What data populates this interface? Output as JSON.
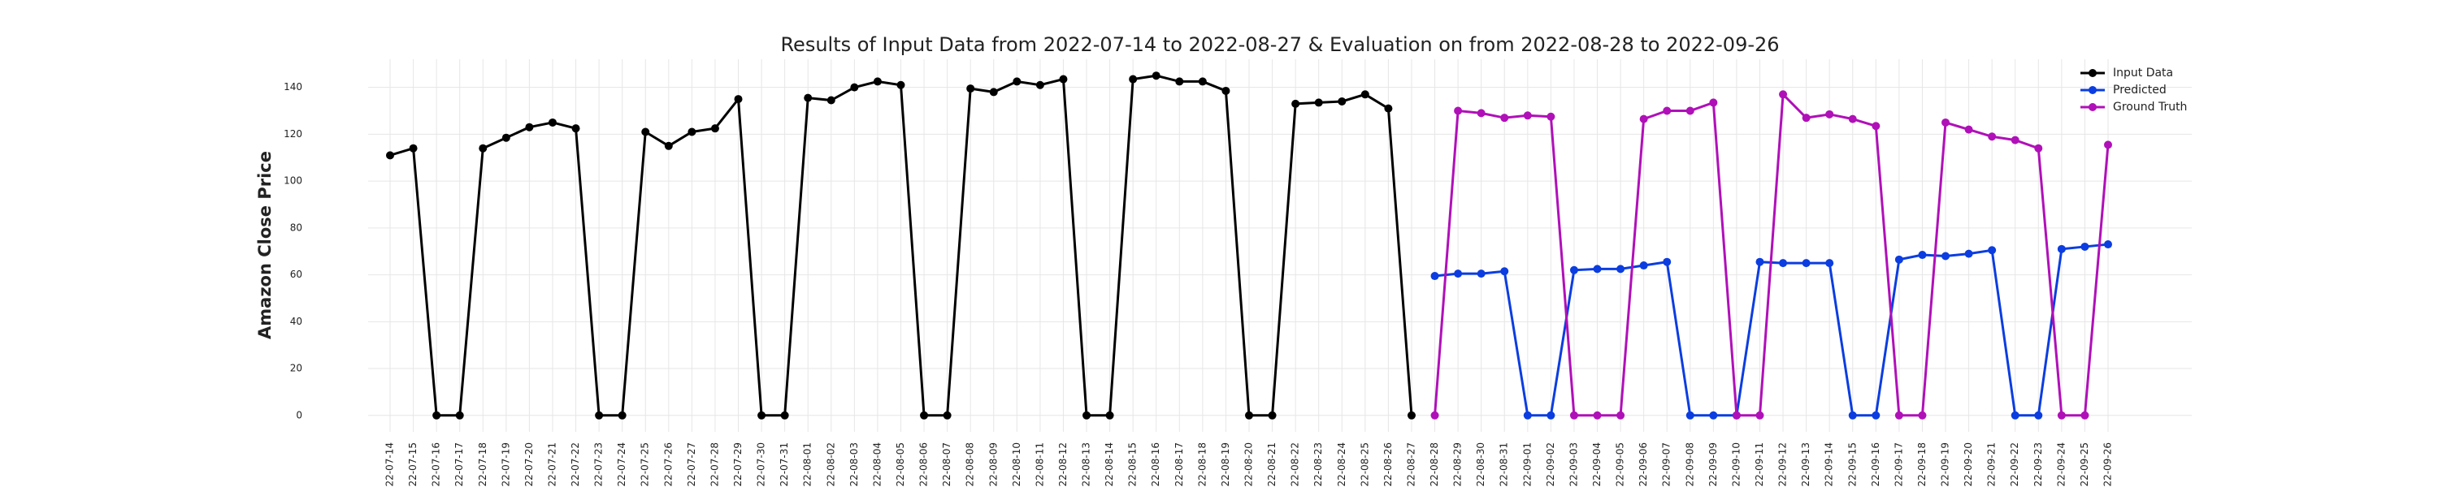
{
  "chart_data": {
    "type": "line",
    "title": "Results of Input Data from 2022-07-14 to 2022-08-27 & Evaluation on from 2022-08-28 to 2022-09-26",
    "y_label": "Amazon Close Price",
    "categories": [
      "2022-07-14",
      "2022-07-15",
      "2022-07-16",
      "2022-07-17",
      "2022-07-18",
      "2022-07-19",
      "2022-07-20",
      "2022-07-21",
      "2022-07-22",
      "2022-07-23",
      "2022-07-24",
      "2022-07-25",
      "2022-07-26",
      "2022-07-27",
      "2022-07-28",
      "2022-07-29",
      "2022-07-30",
      "2022-07-31",
      "2022-08-01",
      "2022-08-02",
      "2022-08-03",
      "2022-08-04",
      "2022-08-05",
      "2022-08-06",
      "2022-08-07",
      "2022-08-08",
      "2022-08-09",
      "2022-08-10",
      "2022-08-11",
      "2022-08-12",
      "2022-08-13",
      "2022-08-14",
      "2022-08-15",
      "2022-08-16",
      "2022-08-17",
      "2022-08-18",
      "2022-08-19",
      "2022-08-20",
      "2022-08-21",
      "2022-08-22",
      "2022-08-23",
      "2022-08-24",
      "2022-08-25",
      "2022-08-26",
      "2022-08-27",
      "2022-08-28",
      "2022-08-29",
      "2022-08-30",
      "2022-08-31",
      "2022-09-01",
      "2022-09-02",
      "2022-09-03",
      "2022-09-04",
      "2022-09-05",
      "2022-09-06",
      "2022-09-07",
      "2022-09-08",
      "2022-09-09",
      "2022-09-10",
      "2022-09-11",
      "2022-09-12",
      "2022-09-13",
      "2022-09-14",
      "2022-09-15",
      "2022-09-16",
      "2022-09-17",
      "2022-09-18",
      "2022-09-19",
      "2022-09-20",
      "2022-09-21",
      "2022-09-22",
      "2022-09-23",
      "2022-09-24",
      "2022-09-25",
      "2022-09-26"
    ],
    "series": [
      {
        "name": "Input Data",
        "color": "#000000",
        "values": [
          111,
          114,
          0,
          0,
          114,
          118.5,
          123,
          125,
          122.5,
          0,
          0,
          121,
          115,
          121,
          122.5,
          135,
          0,
          0,
          135.5,
          134.5,
          140,
          142.5,
          141,
          0,
          0,
          139.5,
          138,
          142.5,
          141,
          143.5,
          0,
          0,
          143.5,
          145,
          142.5,
          142.5,
          138.5,
          0,
          0,
          133,
          133.5,
          134,
          137,
          131,
          0,
          null,
          null,
          null,
          null,
          null,
          null,
          null,
          null,
          null,
          null,
          null,
          null,
          null,
          null,
          null,
          null,
          null,
          null,
          null,
          null,
          null,
          null,
          null,
          null,
          null,
          null,
          null,
          null,
          null,
          null
        ]
      },
      {
        "name": "Predicted",
        "color": "#0b3de0",
        "values": [
          null,
          null,
          null,
          null,
          null,
          null,
          null,
          null,
          null,
          null,
          null,
          null,
          null,
          null,
          null,
          null,
          null,
          null,
          null,
          null,
          null,
          null,
          null,
          null,
          null,
          null,
          null,
          null,
          null,
          null,
          null,
          null,
          null,
          null,
          null,
          null,
          null,
          null,
          null,
          null,
          null,
          null,
          null,
          null,
          null,
          59.5,
          60.5,
          60.5,
          61.5,
          0,
          0,
          62,
          62.5,
          62.5,
          64,
          65.5,
          0,
          0,
          0,
          65.5,
          65,
          65,
          65,
          0,
          0,
          66.5,
          68.5,
          68,
          69,
          70.5,
          0,
          0,
          71,
          72,
          73
        ]
      },
      {
        "name": "Ground Truth",
        "color": "#b010b8",
        "values": [
          null,
          null,
          null,
          null,
          null,
          null,
          null,
          null,
          null,
          null,
          null,
          null,
          null,
          null,
          null,
          null,
          null,
          null,
          null,
          null,
          null,
          null,
          null,
          null,
          null,
          null,
          null,
          null,
          null,
          null,
          null,
          null,
          null,
          null,
          null,
          null,
          null,
          null,
          null,
          null,
          null,
          null,
          null,
          null,
          null,
          0,
          130,
          129,
          127,
          128,
          127.5,
          0,
          0,
          0,
          126.5,
          130,
          130,
          133.5,
          0,
          0,
          137,
          127,
          128.5,
          126.5,
          123.5,
          0,
          0,
          125,
          122,
          119,
          117.5,
          114,
          0,
          0,
          115.5
        ]
      }
    ],
    "ylim": [
      -7,
      152
    ],
    "yticks": [
      0,
      20,
      40,
      60,
      80,
      100,
      120,
      140
    ],
    "grid": true,
    "legend": "upper right"
  }
}
